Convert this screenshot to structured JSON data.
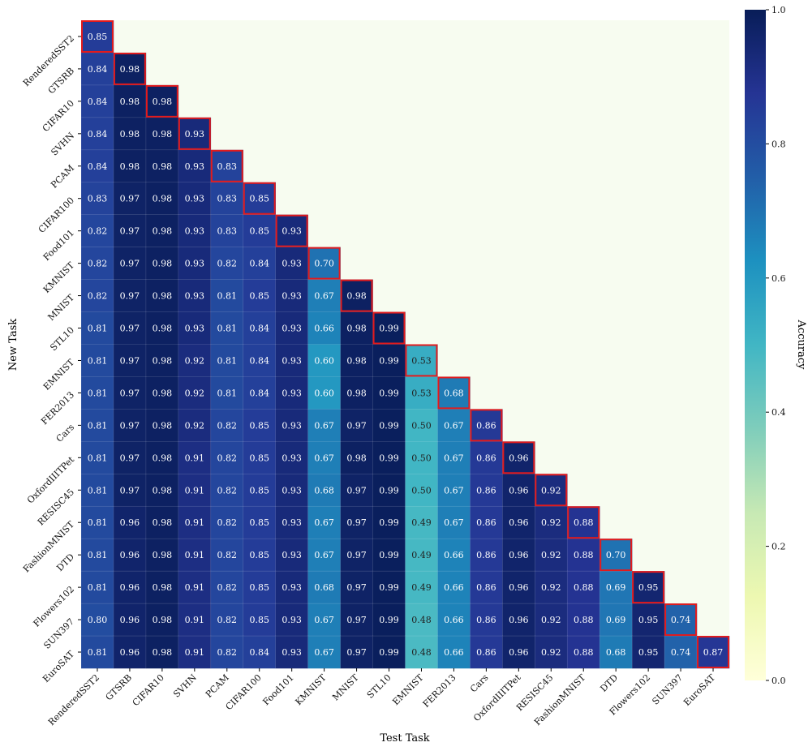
{
  "chart_data": {
    "type": "heatmap",
    "xlabel": "Test Task",
    "ylabel": "New Task",
    "colorbar_label": "Accuracy",
    "colorbar_ticks": [
      "0.0",
      "0.2",
      "0.4",
      "0.6",
      "0.8",
      "1.0"
    ],
    "colorscale": "YlGnBu",
    "vmin": 0.0,
    "vmax": 1.0,
    "highlight_color": "#e31a1c",
    "highlight": "diagonal",
    "masked": "upper-triangle",
    "tasks": [
      "RenderedSST2",
      "GTSRB",
      "CIFAR10",
      "SVHN",
      "PCAM",
      "CIFAR100",
      "Food101",
      "KMNIST",
      "MNIST",
      "STL10",
      "EMNIST",
      "FER2013",
      "Cars",
      "OxfordIIITPet",
      "RESISC45",
      "FashionMNIST",
      "DTD",
      "Flowers102",
      "SUN397",
      "EuroSAT"
    ],
    "values": [
      [
        0.85
      ],
      [
        0.84,
        0.98
      ],
      [
        0.84,
        0.98,
        0.98
      ],
      [
        0.84,
        0.98,
        0.98,
        0.93
      ],
      [
        0.84,
        0.98,
        0.98,
        0.93,
        0.83
      ],
      [
        0.83,
        0.97,
        0.98,
        0.93,
        0.83,
        0.85
      ],
      [
        0.82,
        0.97,
        0.98,
        0.93,
        0.83,
        0.85,
        0.93
      ],
      [
        0.82,
        0.97,
        0.98,
        0.93,
        0.82,
        0.84,
        0.93,
        0.7
      ],
      [
        0.82,
        0.97,
        0.98,
        0.93,
        0.81,
        0.85,
        0.93,
        0.67,
        0.98
      ],
      [
        0.81,
        0.97,
        0.98,
        0.93,
        0.81,
        0.84,
        0.93,
        0.66,
        0.98,
        0.99
      ],
      [
        0.81,
        0.97,
        0.98,
        0.92,
        0.81,
        0.84,
        0.93,
        0.6,
        0.98,
        0.99,
        0.53
      ],
      [
        0.81,
        0.97,
        0.98,
        0.92,
        0.81,
        0.84,
        0.93,
        0.6,
        0.98,
        0.99,
        0.53,
        0.68
      ],
      [
        0.81,
        0.97,
        0.98,
        0.92,
        0.82,
        0.85,
        0.93,
        0.67,
        0.97,
        0.99,
        0.5,
        0.67,
        0.86
      ],
      [
        0.81,
        0.97,
        0.98,
        0.91,
        0.82,
        0.85,
        0.93,
        0.67,
        0.98,
        0.99,
        0.5,
        0.67,
        0.86,
        0.96
      ],
      [
        0.81,
        0.97,
        0.98,
        0.91,
        0.82,
        0.85,
        0.93,
        0.68,
        0.97,
        0.99,
        0.5,
        0.67,
        0.86,
        0.96,
        0.92
      ],
      [
        0.81,
        0.96,
        0.98,
        0.91,
        0.82,
        0.85,
        0.93,
        0.67,
        0.97,
        0.99,
        0.49,
        0.67,
        0.86,
        0.96,
        0.92,
        0.88
      ],
      [
        0.81,
        0.96,
        0.98,
        0.91,
        0.82,
        0.85,
        0.93,
        0.67,
        0.97,
        0.99,
        0.49,
        0.66,
        0.86,
        0.96,
        0.92,
        0.88,
        0.7
      ],
      [
        0.81,
        0.96,
        0.98,
        0.91,
        0.82,
        0.85,
        0.93,
        0.68,
        0.97,
        0.99,
        0.49,
        0.66,
        0.86,
        0.96,
        0.92,
        0.88,
        0.69,
        0.95
      ],
      [
        0.8,
        0.96,
        0.98,
        0.91,
        0.82,
        0.85,
        0.93,
        0.67,
        0.97,
        0.99,
        0.48,
        0.66,
        0.86,
        0.96,
        0.92,
        0.88,
        0.69,
        0.95,
        0.74
      ],
      [
        0.81,
        0.96,
        0.98,
        0.91,
        0.82,
        0.84,
        0.93,
        0.67,
        0.97,
        0.99,
        0.48,
        0.66,
        0.86,
        0.96,
        0.92,
        0.88,
        0.68,
        0.95,
        0.74,
        0.87
      ]
    ]
  }
}
